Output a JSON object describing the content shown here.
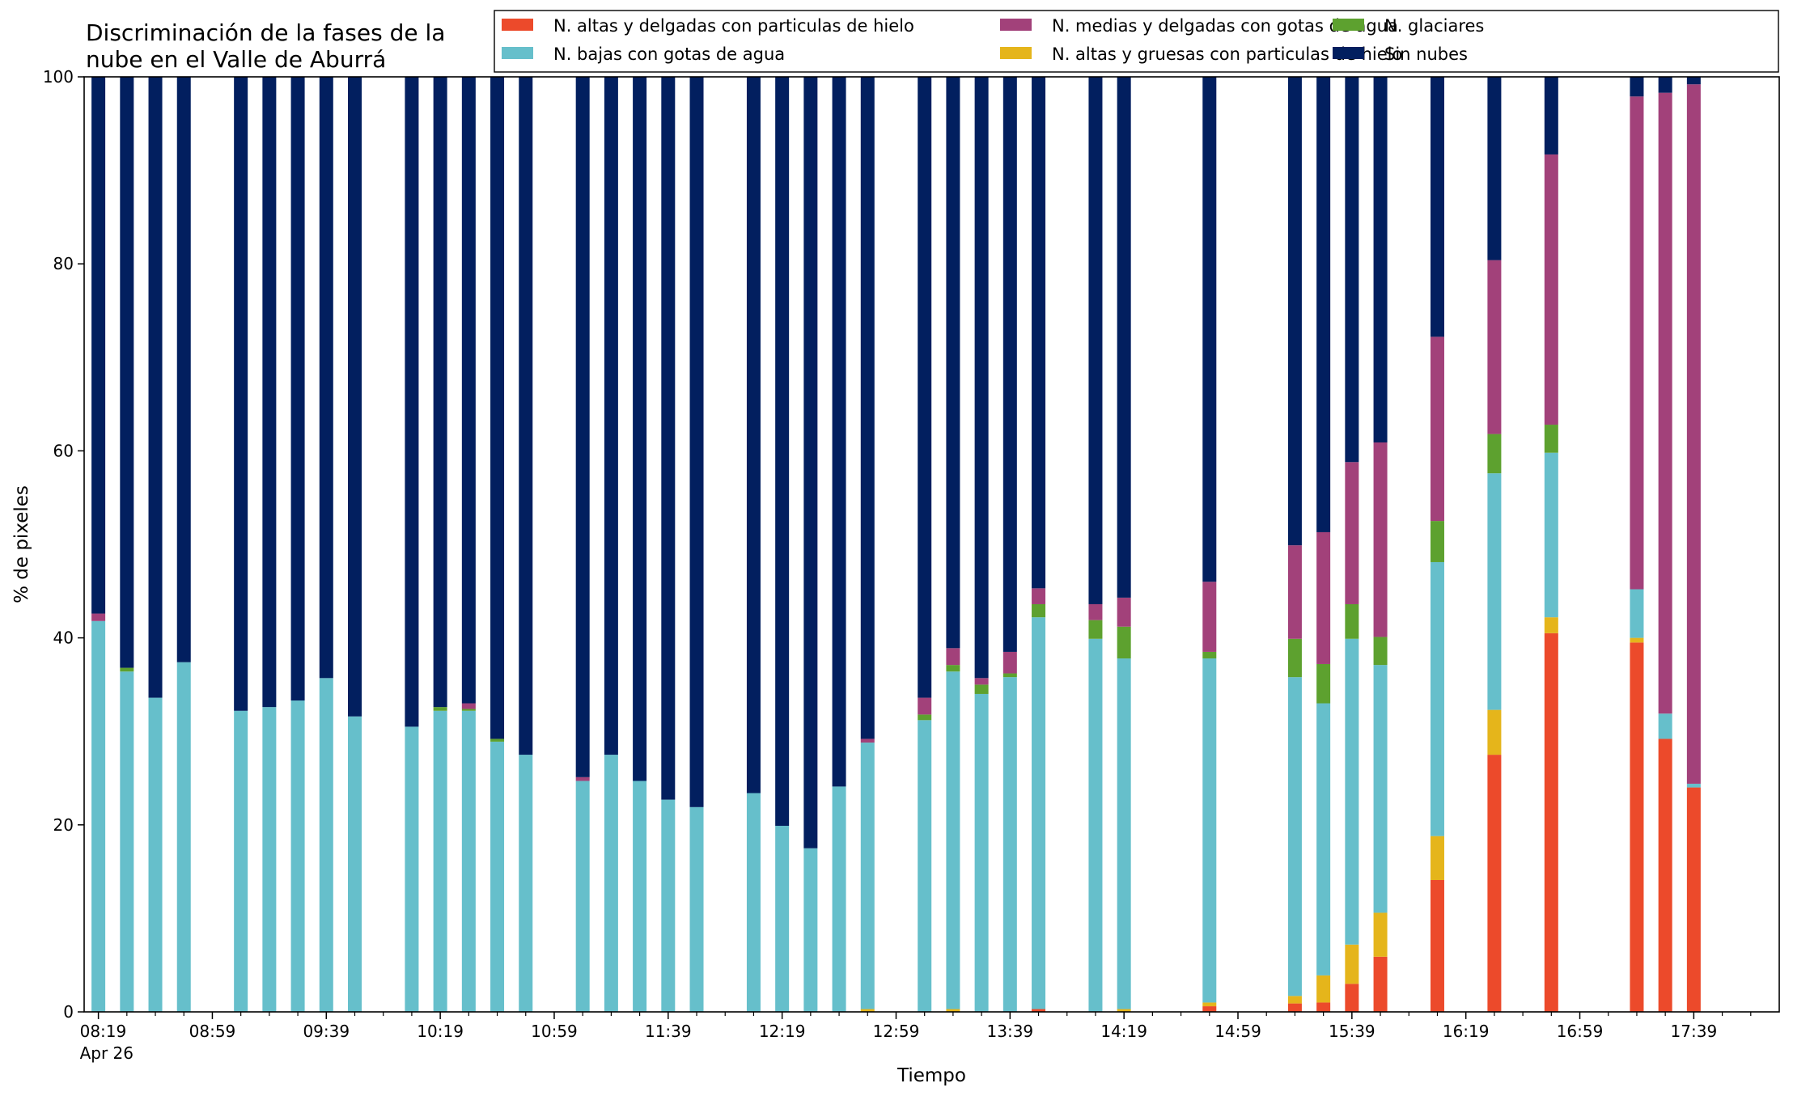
{
  "chart_data": {
    "type": "bar",
    "stacked": true,
    "title": "Discriminación de la fases de la\nnube en el Valle de Aburrá",
    "xlabel": "Tiempo",
    "ylabel": "% de pixeles",
    "ylim": [
      0,
      100
    ],
    "yticks": [
      0,
      20,
      40,
      60,
      80,
      100
    ],
    "xlim_minutes_since_0819": [
      -5,
      590
    ],
    "x_tick_labels": [
      {
        "t": 0,
        "label": "08:19\nApr 26"
      },
      {
        "t": 40,
        "label": "08:59"
      },
      {
        "t": 80,
        "label": "09:39"
      },
      {
        "t": 120,
        "label": "10:19"
      },
      {
        "t": 160,
        "label": "10:59"
      },
      {
        "t": 200,
        "label": "11:39"
      },
      {
        "t": 240,
        "label": "12:19"
      },
      {
        "t": 280,
        "label": "12:59"
      },
      {
        "t": 320,
        "label": "13:39"
      },
      {
        "t": 360,
        "label": "14:19"
      },
      {
        "t": 400,
        "label": "14:59"
      },
      {
        "t": 440,
        "label": "15:39"
      },
      {
        "t": 480,
        "label": "16:19"
      },
      {
        "t": 520,
        "label": "16:59"
      },
      {
        "t": 560,
        "label": "17:39"
      }
    ],
    "x_minor_ticks": [
      10,
      20,
      30,
      50,
      60,
      70,
      90,
      100,
      110,
      130,
      140,
      150,
      170,
      180,
      190,
      210,
      220,
      230,
      250,
      260,
      270,
      290,
      300,
      310,
      330,
      340,
      350,
      370,
      380,
      390,
      410,
      420,
      430,
      450,
      460,
      470,
      490,
      500,
      510,
      530,
      540,
      550,
      570,
      580
    ],
    "legend_position": "top-right",
    "grid": false,
    "series": [
      {
        "name": "N. altas y delgadas con particulas de hielo",
        "color": "#ec4a2b"
      },
      {
        "name": "N. altas y gruesas con particulas de hielo",
        "color": "#e5b51b"
      },
      {
        "name": "N. bajas con gotas de agua",
        "color": "#66bfcb"
      },
      {
        "name": "N. glaciares",
        "color": "#5da12f"
      },
      {
        "name": "N. medias y delgadas con gotas de agua",
        "color": "#a2417a"
      },
      {
        "name": "Sin nubes",
        "color": "#021f5f"
      }
    ],
    "legend_order": [
      0,
      2,
      4,
      1,
      3,
      5
    ],
    "bars": [
      {
        "time": "08:19",
        "values": [
          0,
          0,
          41.8,
          0,
          0.8,
          57.4
        ]
      },
      {
        "time": "08:29",
        "values": [
          0,
          0,
          36.4,
          0.4,
          0,
          63.2
        ]
      },
      {
        "time": "08:39",
        "values": [
          0,
          0,
          33.6,
          0,
          0,
          66.4
        ]
      },
      {
        "time": "08:49",
        "values": [
          0,
          0,
          37.4,
          0,
          0,
          62.6
        ]
      },
      {
        "time": "09:09",
        "values": [
          0,
          0,
          32.2,
          0,
          0,
          67.8
        ]
      },
      {
        "time": "09:19",
        "values": [
          0,
          0,
          32.6,
          0,
          0,
          67.4
        ]
      },
      {
        "time": "09:29",
        "values": [
          0,
          0,
          33.3,
          0,
          0,
          66.7
        ]
      },
      {
        "time": "09:39",
        "values": [
          0,
          0,
          35.7,
          0,
          0,
          64.3
        ]
      },
      {
        "time": "09:49",
        "values": [
          0,
          0,
          31.6,
          0,
          0,
          68.4
        ]
      },
      {
        "time": "10:09",
        "values": [
          0,
          0,
          30.5,
          0,
          0,
          69.5
        ]
      },
      {
        "time": "10:19",
        "values": [
          0,
          0,
          32.2,
          0.4,
          0,
          67.4
        ]
      },
      {
        "time": "10:29",
        "values": [
          0,
          0,
          32.2,
          0.2,
          0.6,
          67.0
        ]
      },
      {
        "time": "10:39",
        "values": [
          0,
          0,
          28.9,
          0.3,
          0,
          70.8
        ]
      },
      {
        "time": "10:49",
        "values": [
          0,
          0,
          27.5,
          0,
          0,
          72.5
        ]
      },
      {
        "time": "11:09",
        "values": [
          0,
          0,
          24.7,
          0,
          0.4,
          74.9
        ]
      },
      {
        "time": "11:19",
        "values": [
          0,
          0,
          27.5,
          0,
          0,
          72.5
        ]
      },
      {
        "time": "11:29",
        "values": [
          0,
          0,
          24.7,
          0,
          0,
          75.3
        ]
      },
      {
        "time": "11:39",
        "values": [
          0,
          0,
          22.7,
          0,
          0,
          77.3
        ]
      },
      {
        "time": "11:49",
        "values": [
          0,
          0,
          21.9,
          0,
          0,
          78.1
        ]
      },
      {
        "time": "12:09",
        "values": [
          0,
          0,
          23.4,
          0,
          0,
          76.6
        ]
      },
      {
        "time": "12:19",
        "values": [
          0,
          0,
          19.9,
          0,
          0,
          80.1
        ]
      },
      {
        "time": "12:29",
        "values": [
          0,
          0,
          17.5,
          0,
          0,
          82.5
        ]
      },
      {
        "time": "12:39",
        "values": [
          0,
          0,
          24.1,
          0,
          0,
          75.9
        ]
      },
      {
        "time": "12:49",
        "values": [
          0,
          0.3,
          28.5,
          0,
          0.4,
          70.8
        ]
      },
      {
        "time": "13:09",
        "values": [
          0,
          0,
          31.2,
          0.6,
          1.8,
          66.4
        ]
      },
      {
        "time": "13:19",
        "values": [
          0,
          0.3,
          36.1,
          0.7,
          1.8,
          61.1
        ]
      },
      {
        "time": "13:29",
        "values": [
          0,
          0,
          34.0,
          1.0,
          0.7,
          64.3
        ]
      },
      {
        "time": "13:39",
        "values": [
          0,
          0,
          35.8,
          0.4,
          2.3,
          61.5
        ]
      },
      {
        "time": "13:49",
        "values": [
          0.3,
          0,
          41.9,
          1.4,
          1.7,
          54.7
        ]
      },
      {
        "time": "14:09",
        "values": [
          0,
          0,
          39.9,
          2.0,
          1.7,
          56.4
        ]
      },
      {
        "time": "14:19",
        "values": [
          0,
          0.3,
          37.5,
          3.4,
          3.1,
          55.7
        ]
      },
      {
        "time": "14:49",
        "values": [
          0.6,
          0.4,
          36.8,
          0.7,
          7.5,
          54.0
        ]
      },
      {
        "time": "15:19",
        "values": [
          0.9,
          0.8,
          34.1,
          4.1,
          10.0,
          50.1
        ]
      },
      {
        "time": "15:29",
        "values": [
          1.0,
          2.9,
          29.1,
          4.2,
          14.1,
          48.7
        ]
      },
      {
        "time": "15:39",
        "values": [
          3.0,
          4.2,
          32.7,
          3.7,
          15.2,
          41.2
        ]
      },
      {
        "time": "15:49",
        "values": [
          5.9,
          4.7,
          26.5,
          3.0,
          20.8,
          39.1
        ]
      },
      {
        "time": "16:09",
        "values": [
          14.1,
          4.7,
          29.3,
          4.4,
          19.7,
          27.8
        ]
      },
      {
        "time": "16:29",
        "values": [
          27.5,
          4.8,
          25.3,
          4.2,
          18.6,
          19.6
        ]
      },
      {
        "time": "16:49",
        "values": [
          40.5,
          1.7,
          17.6,
          3.0,
          28.9,
          8.3
        ]
      },
      {
        "time": "17:19",
        "values": [
          39.5,
          0.5,
          5.2,
          0,
          52.7,
          2.1
        ]
      },
      {
        "time": "17:29",
        "values": [
          29.2,
          0,
          2.7,
          0,
          66.4,
          1.7
        ]
      },
      {
        "time": "17:39",
        "values": [
          24.0,
          0,
          0.4,
          0,
          74.8,
          0.8
        ]
      }
    ]
  }
}
